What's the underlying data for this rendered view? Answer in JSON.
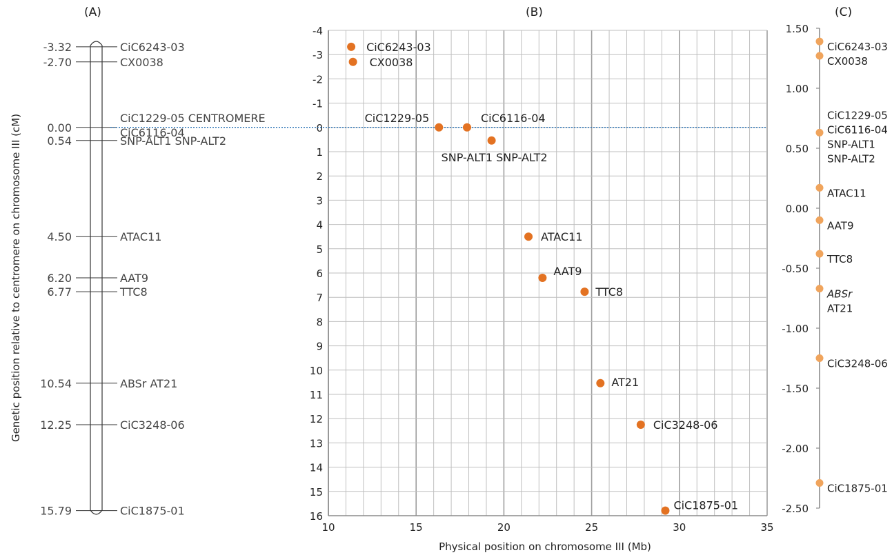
{
  "panels": {
    "a": "(A)",
    "b": "(B)",
    "c": "(C)"
  },
  "colors": {
    "marker": "#E37222",
    "marker_light": "#F0A45C",
    "grid": "#BFBFBF",
    "centromere_line": "#2E75B6"
  },
  "chart_data": [
    {
      "panel": "(A)",
      "type": "diagram",
      "markers": [
        {
          "pos": -3.32,
          "pos_label": "-3.32",
          "label": "CiC6243-03"
        },
        {
          "pos": -2.7,
          "pos_label": "-2.70",
          "label": "CX0038"
        },
        {
          "pos": 0.0,
          "pos_label": "0.00",
          "label": "CiC1229-05 CENTROMERE",
          "label2": "CiC6116-04"
        },
        {
          "pos": 0.54,
          "pos_label": "0.54",
          "label": "SNP-ALT1 SNP-ALT2"
        },
        {
          "pos": 4.5,
          "pos_label": "4.50",
          "label": "ATAC11"
        },
        {
          "pos": 6.2,
          "pos_label": "6.20",
          "label": "AAT9"
        },
        {
          "pos": 6.77,
          "pos_label": "6.77",
          "label": "TTC8"
        },
        {
          "pos": 10.54,
          "pos_label": "10.54",
          "label": "ABSr AT21"
        },
        {
          "pos": 12.25,
          "pos_label": "12.25",
          "label": "CiC3248-06"
        },
        {
          "pos": 15.79,
          "pos_label": "15.79",
          "label": "CiC1875-01"
        }
      ]
    },
    {
      "panel": "(B)",
      "type": "scatter",
      "xlabel": "Physical position on chromosome III (Mb)",
      "ylabel": "Genetic position relative to centromere on chromosome III (cM)",
      "xlim": [
        10,
        35
      ],
      "ylim": [
        -4,
        16
      ],
      "y_inverted": true,
      "xticks": [
        "10",
        "15",
        "20",
        "25",
        "30",
        "35"
      ],
      "yticks": [
        "-4",
        "-3",
        "-2",
        "-1",
        "0",
        "1",
        "2",
        "3",
        "4",
        "5",
        "6",
        "7",
        "8",
        "9",
        "10",
        "11",
        "12",
        "13",
        "14",
        "15",
        "16"
      ],
      "grid": true,
      "points": [
        {
          "label": "CiC6243-03",
          "x": 11.3,
          "y": -3.32
        },
        {
          "label": "CX0038",
          "x": 11.4,
          "y": -2.7
        },
        {
          "label": "CiC1229-05",
          "x": 16.3,
          "y": 0.0
        },
        {
          "label": "CiC6116-04",
          "x": 17.9,
          "y": 0.0
        },
        {
          "label": "SNP-ALT1 SNP-ALT2",
          "x": 19.3,
          "y": 0.54
        },
        {
          "label": "ATAC11",
          "x": 21.4,
          "y": 4.5
        },
        {
          "label": "AAT9",
          "x": 22.2,
          "y": 6.2
        },
        {
          "label": "TTC8",
          "x": 24.6,
          "y": 6.77
        },
        {
          "label": "AT21",
          "x": 25.5,
          "y": 10.54
        },
        {
          "label": "CiC3248-06",
          "x": 27.8,
          "y": 12.25
        },
        {
          "label": "CiC1875-01",
          "x": 29.2,
          "y": 15.79
        }
      ],
      "reference_line_y": 0
    },
    {
      "panel": "(C)",
      "type": "scatter",
      "ylim": [
        -2.5,
        1.5
      ],
      "yticks": [
        "1.50",
        "1.00",
        "0.50",
        "0.00",
        "-0.50",
        "-1.00",
        "-1.50",
        "-2.00",
        "-2.50"
      ],
      "points": [
        {
          "y": 1.39,
          "labels": [
            "CiC6243-03"
          ]
        },
        {
          "y": 1.27,
          "labels": [
            "CX0038"
          ]
        },
        {
          "y": 0.63,
          "labels": [
            "CiC1229-05",
            "CiC6116-04",
            "SNP-ALT1",
            "SNP-ALT2"
          ]
        },
        {
          "y": 0.17,
          "labels": [
            "ATAC11"
          ]
        },
        {
          "y": -0.1,
          "labels": [
            "AAT9"
          ]
        },
        {
          "y": -0.38,
          "labels": [
            "TTC8"
          ]
        },
        {
          "y": -0.67,
          "labels": [
            "ABSr",
            "AT21"
          ]
        },
        {
          "y": -1.25,
          "labels": [
            "CiC3248-06"
          ]
        },
        {
          "y": -2.29,
          "labels": [
            "CiC1875-01"
          ]
        }
      ]
    }
  ]
}
